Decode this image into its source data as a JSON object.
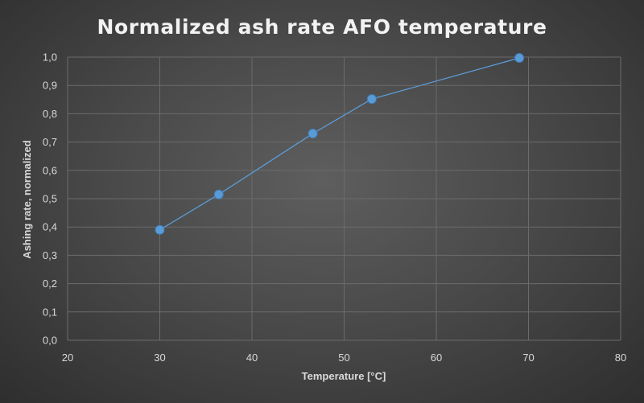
{
  "chart_data": {
    "type": "scatter",
    "title": "Normalized ash rate AFO temperature",
    "xlabel": "Temperature [°C]",
    "ylabel": "Ashing rate, normalized",
    "xlim": [
      20,
      80
    ],
    "ylim": [
      0,
      1
    ],
    "x_ticks": [
      "20",
      "30",
      "40",
      "50",
      "60",
      "70",
      "80"
    ],
    "y_ticks": [
      "0,0",
      "0,1",
      "0,2",
      "0,3",
      "0,4",
      "0,5",
      "0,6",
      "0,7",
      "0,8",
      "0,9",
      "1,0"
    ],
    "grid": true,
    "legend": "none",
    "markers": true,
    "lines": true,
    "colors": {
      "series": "#5b9bd5",
      "marker_edge": "#3f7fbf"
    },
    "series": [
      {
        "x": [
          30,
          36.4,
          46.6,
          53,
          69
        ],
        "y": [
          0.39,
          0.515,
          0.73,
          0.852,
          0.997
        ]
      }
    ]
  }
}
